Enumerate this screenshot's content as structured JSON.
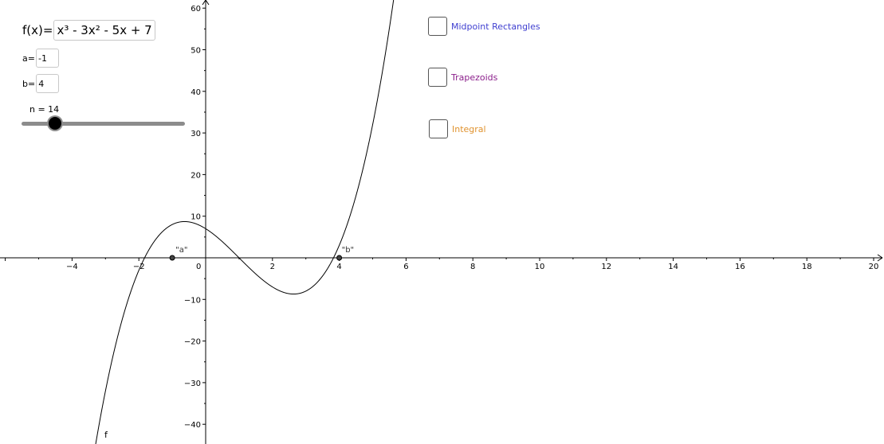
{
  "function_input": {
    "label": "f(x)=",
    "value": "x³ - 3x² - 5x + 7"
  },
  "param_a": {
    "label": "a=",
    "value": "-1"
  },
  "param_b": {
    "label": "b=",
    "value": "4"
  },
  "slider": {
    "caption": "n = 14",
    "value": 14,
    "min": 1,
    "max": 100
  },
  "checkboxes": [
    {
      "label": "Midpoint Rectangles",
      "checked": false,
      "color": "#4040d0"
    },
    {
      "label": "Trapezoids",
      "checked": false,
      "color": "#8b1f8b"
    },
    {
      "label": "Integral",
      "checked": false,
      "color": "#e0922e"
    }
  ],
  "graph": {
    "x_ticks": [
      "−4",
      "−2",
      "0",
      "2",
      "4",
      "6",
      "8",
      "10",
      "12",
      "14",
      "16",
      "18",
      "20"
    ],
    "x_tick_values": [
      -4,
      -2,
      0,
      2,
      4,
      6,
      8,
      10,
      12,
      14,
      16,
      18,
      20
    ],
    "y_ticks": [
      "60",
      "50",
      "40",
      "30",
      "20",
      "10",
      "−10",
      "−20",
      "−30",
      "−40"
    ],
    "y_tick_values": [
      60,
      50,
      40,
      30,
      20,
      10,
      -10,
      -20,
      -30,
      -40
    ],
    "curve_label": "f",
    "point_a_label": "\"a\"",
    "point_b_label": "\"b\""
  }
}
